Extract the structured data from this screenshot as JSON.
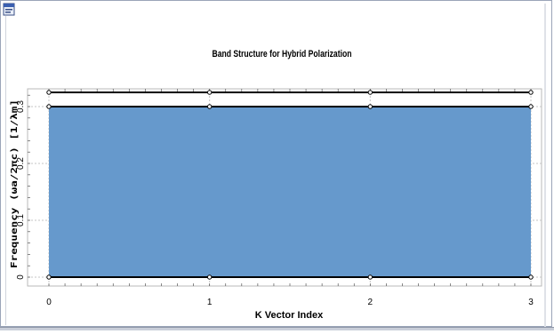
{
  "window": {
    "icon": "app-window-icon"
  },
  "chart_data": {
    "type": "line",
    "title": "Band Structure for Hybrid Polarization",
    "xlabel": "K Vector Index",
    "ylabel": "Frequency (ωa/2πc) [1/λm]",
    "xlim": [
      0,
      3
    ],
    "ylim": [
      0,
      0.33
    ],
    "x_ticks": [
      0,
      1,
      2,
      3
    ],
    "y_ticks": [
      0,
      0.1,
      0.2,
      0.3
    ],
    "grid": true,
    "fill_color": "#6699cc",
    "line_color": "#000000",
    "series": [
      {
        "x": [
          0,
          1,
          2,
          3
        ],
        "values": [
          0,
          0,
          0,
          0
        ]
      },
      {
        "x": [
          0,
          1,
          2,
          3
        ],
        "values": [
          0.3,
          0.3,
          0.3,
          0.3
        ]
      },
      {
        "x": [
          0,
          1,
          2,
          3
        ],
        "values": [
          0.325,
          0.325,
          0.325,
          0.325
        ]
      }
    ],
    "filled_band": {
      "from": 0,
      "to": 0.3
    }
  }
}
